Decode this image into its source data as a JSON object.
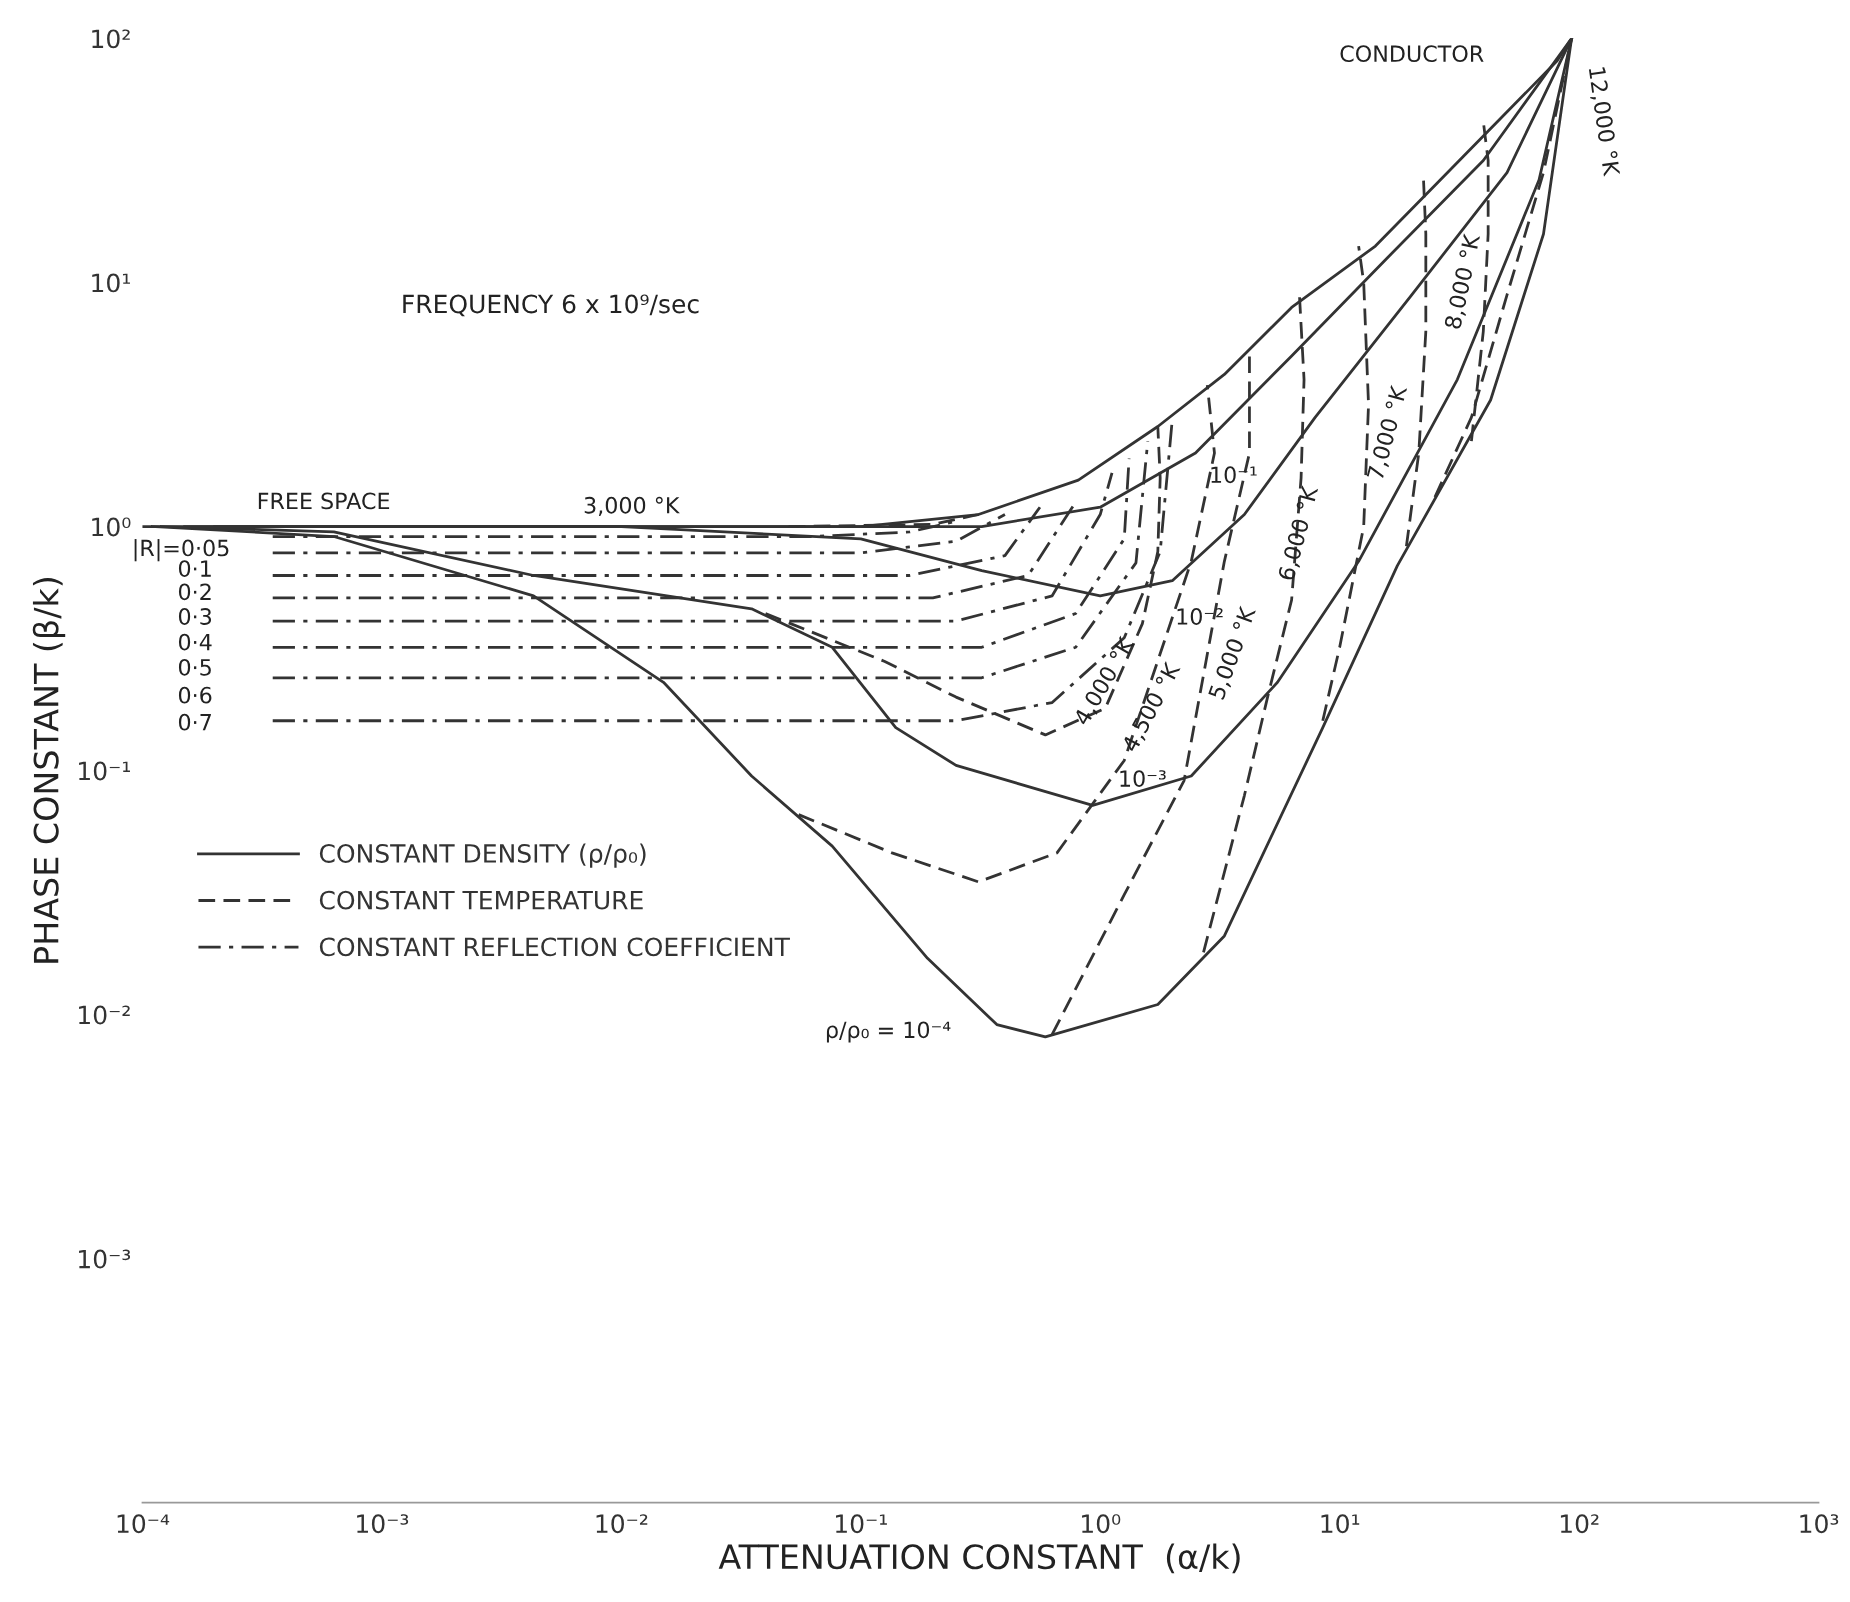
{
  "chart_data": {
    "type": "line",
    "xlabel": "ATTENUATION CONSTANT  (α/k)",
    "ylabel": "PHASE CONSTANT (β/k)",
    "log": "xy",
    "xlim": [
      0.0001,
      1000
    ],
    "ylim": [
      0.0001,
      100
    ],
    "xticks": [
      {
        "value": 0.0001,
        "label": "10⁻⁴"
      },
      {
        "value": 0.001,
        "label": "10⁻³"
      },
      {
        "value": 0.01,
        "label": "10⁻²"
      },
      {
        "value": 0.1,
        "label": "10⁻¹"
      },
      {
        "value": 1,
        "label": "10⁰"
      },
      {
        "value": 10,
        "label": "10¹"
      },
      {
        "value": 100,
        "label": "10²"
      },
      {
        "value": 1000,
        "label": "10³"
      }
    ],
    "yticks": [
      {
        "value": 0.001,
        "label": "10⁻³"
      },
      {
        "value": 0.01,
        "label": "10⁻²"
      },
      {
        "value": 0.1,
        "label": "10⁻¹"
      },
      {
        "value": 1,
        "label": "10⁰"
      },
      {
        "value": 10,
        "label": "10¹"
      },
      {
        "value": 100,
        "label": "10²"
      }
    ],
    "grid": false,
    "legend": "left",
    "marker": "none",
    "series": [
      {
        "name": "CONSTANT DENSITY (ρ/ρ₀)",
        "color": "#333333",
        "line_style": "solid",
        "x": [
          0.00011,
          0.00063,
          0.0043,
          0.015,
          0.035,
          0.076,
          0.19,
          0.37,
          0.59,
          1.74,
          3.3,
          8.5,
          17.4,
          42.7,
          71,
          93
        ],
        "values": [
          1,
          0.91,
          0.52,
          0.23,
          0.095,
          0.049,
          0.017,
          0.0091,
          0.0081,
          0.011,
          0.021,
          0.15,
          0.69,
          3.3,
          15.8,
          100
        ]
      },
      {
        "color": "#333333",
        "line_style": "solid",
        "x": [
          0.00012,
          0.00063,
          0.0043,
          0.035,
          0.076,
          0.14,
          0.25,
          0.93,
          2.4,
          5.5,
          12,
          31,
          68,
          93
        ],
        "values": [
          1,
          0.95,
          0.63,
          0.46,
          0.32,
          0.15,
          0.105,
          0.072,
          0.095,
          0.23,
          0.72,
          4,
          26.3,
          100
        ]
      },
      {
        "color": "#333333",
        "line_style": "solid",
        "x": [
          0.00015,
          0.01,
          0.1,
          0.32,
          1,
          2,
          4,
          7.9,
          20,
          50,
          93
        ],
        "values": [
          1,
          1,
          0.89,
          0.66,
          0.52,
          0.6,
          1.12,
          2.8,
          8.9,
          28.2,
          100
        ]
      },
      {
        "color": "#333333",
        "line_style": "solid",
        "x": [
          0.0002,
          0.1,
          0.32,
          1,
          2.5,
          6.3,
          15.8,
          39.8,
          93
        ],
        "values": [
          1,
          1,
          1,
          1.2,
          2,
          5,
          12.6,
          31.6,
          100
        ]
      },
      {
        "color": "#333333",
        "line_style": "solid",
        "x": [
          0.0001,
          0.1,
          0.31,
          0.81,
          1.74,
          3.3,
          6.3,
          14.1,
          26.3,
          49,
          81,
          93
        ],
        "values": [
          1,
          1,
          1.12,
          1.55,
          2.57,
          4.2,
          7.9,
          14.1,
          26.3,
          49,
          81,
          100
        ]
      },
      {
        "name": "CONSTANT TEMPERATURE",
        "color": "#333333",
        "line_style": "dashed",
        "x": [
          0.04,
          0.126,
          0.25,
          0.59,
          1.05,
          1.5,
          1.74,
          1.78,
          1.74
        ],
        "values": [
          0.44,
          0.28,
          0.2,
          0.14,
          0.18,
          0.4,
          0.79,
          1.58,
          2.57
        ]
      },
      {
        "color": "#333333",
        "line_style": "dashed",
        "x": [
          0.05,
          0.2,
          0.31
        ],
        "values": [
          1,
          1.02,
          1.12
        ]
      },
      {
        "color": "#333333",
        "line_style": "dashed",
        "x": [
          0.055,
          0.135,
          0.31,
          0.66,
          1.26,
          2.4,
          3.0,
          2.8
        ],
        "values": [
          0.066,
          0.046,
          0.035,
          0.046,
          0.11,
          0.72,
          2.0,
          3.8
        ]
      },
      {
        "color": "#333333",
        "line_style": "dashed",
        "x": [
          0.63,
          1.26,
          2.24,
          3.3,
          4.2,
          4.2
        ],
        "values": [
          0.0083,
          0.031,
          0.091,
          0.72,
          2.0,
          5.0
        ]
      },
      {
        "color": "#333333",
        "line_style": "dashed",
        "x": [
          2.7,
          4,
          5,
          6.3,
          6.9,
          7.1,
          6.8
        ],
        "values": [
          0.018,
          0.079,
          0.2,
          0.5,
          1.58,
          4,
          8.7
        ]
      },
      {
        "color": "#333333",
        "line_style": "dashed",
        "x": [
          8.5,
          10,
          12.6,
          13.2,
          12.6,
          12
        ],
        "values": [
          0.16,
          0.32,
          1,
          3.16,
          10,
          14.1
        ]
      },
      {
        "color": "#333333",
        "line_style": "dashed",
        "x": [
          19,
          21.4,
          22.9,
          22.9,
          22.4
        ],
        "values": [
          0.83,
          2,
          6.3,
          15.8,
          26.3
        ]
      },
      {
        "color": "#333333",
        "line_style": "dashed",
        "x": [
          35.5,
          39.8,
          41.7,
          41.7,
          39.8
        ],
        "values": [
          2.24,
          6.3,
          15.8,
          31.6,
          45.7
        ]
      },
      {
        "color": "#333333",
        "line_style": "dashed",
        "x": [
          25,
          35.5,
          50,
          71,
          93
        ],
        "values": [
          1.32,
          2.8,
          8.9,
          28.2,
          100
        ]
      },
      {
        "name": "CONSTANT REFLECTION COEFFICIENT",
        "color": "#333333",
        "line_style": "dashdot",
        "x": [
          0.00035,
          0.063,
          0.16,
          0.25
        ],
        "values": [
          0.91,
          0.91,
          0.95,
          1.05
        ]
      },
      {
        "color": "#333333",
        "line_style": "dashdot",
        "x": [
          0.00035,
          0.1,
          0.25,
          0.4
        ],
        "values": [
          0.78,
          0.78,
          0.87,
          1.12
        ]
      },
      {
        "color": "#333333",
        "line_style": "dashdot",
        "x": [
          0.00035,
          0.16,
          0.4,
          0.56
        ],
        "values": [
          0.63,
          0.63,
          0.76,
          1.2
        ]
      },
      {
        "color": "#333333",
        "line_style": "dashdot",
        "x": [
          0.00035,
          0.2,
          0.5,
          0.79
        ],
        "values": [
          0.51,
          0.51,
          0.63,
          1.26
        ]
      },
      {
        "color": "#333333",
        "line_style": "dashdot",
        "x": [
          0.00035,
          0.25,
          0.63,
          1,
          1.12
        ],
        "values": [
          0.41,
          0.41,
          0.52,
          1.12,
          1.66
        ]
      },
      {
        "color": "#333333",
        "line_style": "dashdot",
        "x": [
          0.00035,
          0.32,
          0.79,
          1.26,
          1.32
        ],
        "values": [
          0.32,
          0.32,
          0.44,
          0.89,
          1.9
        ]
      },
      {
        "color": "#333333",
        "line_style": "dashdot",
        "x": [
          0.00035,
          0.32,
          0.79,
          1.41,
          1.58
        ],
        "values": [
          0.24,
          0.24,
          0.32,
          0.71,
          2.24
        ]
      },
      {
        "color": "#333333",
        "line_style": "dashdot",
        "x": [
          0.00035,
          0.25,
          0.63,
          1.26,
          1.78,
          2.0
        ],
        "values": [
          0.16,
          0.16,
          0.19,
          0.35,
          0.79,
          2.75
        ]
      }
    ],
    "annotations": [
      "FREQUENCY 6 x 10⁹/sec",
      "FREE SPACE",
      "CONDUCTOR",
      "3,000 °K",
      "|R|=0·05",
      "0·1",
      "0·2",
      "0·3",
      "0·4",
      "0·5",
      "0·6",
      "0·7",
      "ρ/ρ₀ = 10⁻⁴",
      {
        "text": "10⁻³",
        "x": 1.5,
        "y": 0.091
      },
      "10⁻²",
      {
        "text": "10⁻¹",
        "x": 3.6,
        "y": 1.6
      },
      {
        "text": "4,000 °K",
        "x": 1.05,
        "y": 0.23
      },
      {
        "text": "4,500 °K",
        "x": 1.65,
        "y": 0.18
      },
      "5,000 °K",
      {
        "text": "6,000 °K",
        "x": 6.8,
        "y": 0.93
      },
      "7,000 °K",
      "8,000 °K",
      "12,000 °K"
    ]
  }
}
